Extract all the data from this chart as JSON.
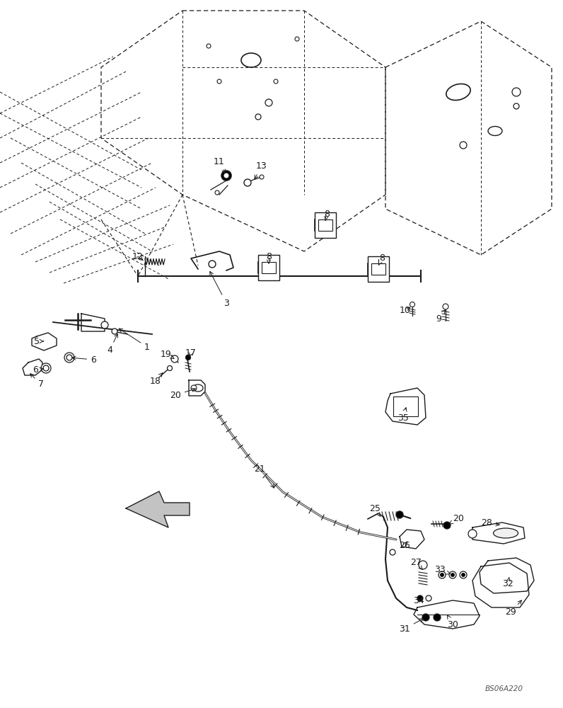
{
  "bg": "#ffffff",
  "lc": "#1a1a1a",
  "watermark": "BS06A220",
  "figsize": [
    7.96,
    10.0
  ],
  "dpi": 100
}
